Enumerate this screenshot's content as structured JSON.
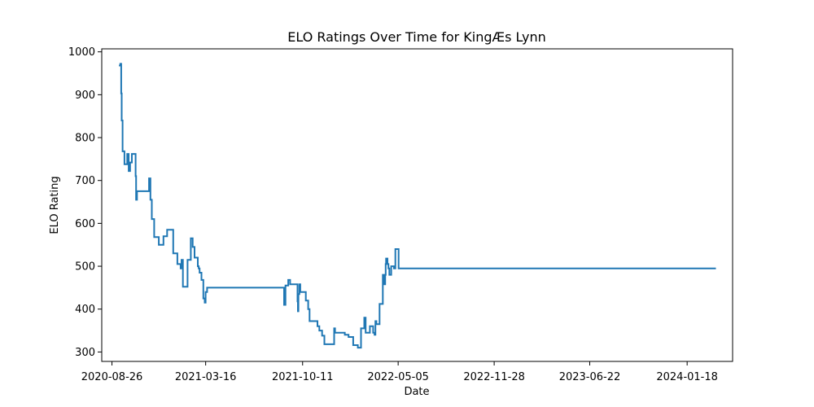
{
  "chart_data": {
    "type": "line",
    "title": "ELO Ratings Over Time for KingÆs Lynn",
    "xlabel": "Date",
    "ylabel": "ELO Rating",
    "x_tick_labels": [
      "2020-08-26",
      "2021-03-16",
      "2021-10-11",
      "2022-05-05",
      "2022-11-28",
      "2023-06-22",
      "2024-01-18"
    ],
    "y_ticks": [
      300,
      400,
      500,
      600,
      700,
      800,
      900,
      1000
    ],
    "ylim": [
      278,
      1007
    ],
    "xlim": [
      "2020-08-04",
      "2024-04-25"
    ],
    "grid": false,
    "line_color": "#1f77b4",
    "series": [
      {
        "x": [
          "2020-09-10",
          "2020-09-13",
          "2020-09-15",
          "2020-09-16",
          "2020-09-18",
          "2020-09-19",
          "2020-09-21",
          "2020-09-22",
          "2020-09-28",
          "2020-09-30",
          "2020-10-01",
          "2020-10-04",
          "2020-10-08",
          "2020-10-13",
          "2020-10-16",
          "2020-10-17",
          "2020-10-19",
          "2020-10-21",
          "2020-10-24",
          "2020-10-31",
          "2020-11-01",
          "2020-11-06",
          "2020-11-10",
          "2020-11-14",
          "2020-11-17",
          "2020-11-20",
          "2020-11-25",
          "2020-12-05",
          "2020-12-15",
          "2020-12-23",
          "2021-01-05",
          "2021-01-14",
          "2021-01-21",
          "2021-01-23",
          "2021-01-26",
          "2021-02-05",
          "2021-02-10",
          "2021-02-12",
          "2021-02-16",
          "2021-02-20",
          "2021-02-22",
          "2021-02-27",
          "2021-03-01",
          "2021-03-03",
          "2021-03-07",
          "2021-03-09",
          "2021-03-11",
          "2021-03-14",
          "2021-03-16",
          "2021-03-19",
          "2021-03-26",
          "2021-04-01",
          "2021-04-03",
          "2021-04-06",
          "2021-04-10",
          "2021-04-13",
          "2021-04-16",
          "2021-04-20",
          "2021-04-22",
          "2021-04-25",
          "2021-05-01",
          "2021-05-11",
          "2021-05-18",
          "2021-05-22",
          "2021-05-24",
          "2021-06-02",
          "2021-08-20",
          "2021-09-01",
          "2021-09-03",
          "2021-09-04",
          "2021-09-10",
          "2021-09-14",
          "2021-09-17",
          "2021-09-21",
          "2021-09-27",
          "2021-09-30",
          "2021-10-01",
          "2021-10-02",
          "2021-10-04",
          "2021-10-06",
          "2021-10-08",
          "2021-10-10",
          "2021-10-18",
          "2021-10-23",
          "2021-10-26",
          "2021-11-05",
          "2021-11-12",
          "2021-11-16",
          "2021-11-22",
          "2021-11-27",
          "2021-12-07",
          "2021-12-18",
          "2021-12-20",
          "2021-12-25",
          "2022-01-10",
          "2022-01-18",
          "2022-01-28",
          "2022-02-07",
          "2022-02-14",
          "2022-02-21",
          "2022-02-24",
          "2022-02-26",
          "2022-03-05",
          "2022-03-12",
          "2022-03-15",
          "2022-03-17",
          "2022-03-19",
          "2022-03-23",
          "2022-03-26",
          "2022-03-29",
          "2022-04-02",
          "2022-04-05",
          "2022-04-07",
          "2022-04-08",
          "2022-04-09",
          "2022-04-12",
          "2022-04-14",
          "2022-04-16",
          "2022-04-20",
          "2022-04-22",
          "2022-04-26",
          "2022-04-29",
          "2022-05-03",
          "2022-05-06",
          "2022-05-07",
          "2022-05-08",
          "2024-03-20"
        ],
        "y": [
          968,
          972,
          903,
          840,
          768,
          768,
          768,
          738,
          762,
          762,
          722,
          742,
          762,
          762,
          710,
          655,
          675,
          675,
          675,
          675,
          675,
          675,
          675,
          705,
          655,
          610,
          568,
          550,
          570,
          585,
          530,
          505,
          495,
          515,
          452,
          515,
          515,
          565,
          545,
          520,
          520,
          500,
          495,
          485,
          468,
          468,
          425,
          415,
          440,
          450,
          450,
          450,
          450,
          450,
          450,
          450,
          450,
          450,
          450,
          450,
          450,
          450,
          450,
          450,
          450,
          450,
          450,
          410,
          410,
          455,
          468,
          458,
          458,
          458,
          458,
          418,
          395,
          435,
          458,
          440,
          440,
          440,
          420,
          400,
          372,
          372,
          360,
          350,
          338,
          318,
          318,
          355,
          345,
          345,
          340,
          335,
          316,
          310,
          355,
          380,
          345,
          345,
          360,
          345,
          340,
          372,
          365,
          365,
          412,
          412,
          480,
          458,
          480,
          505,
          518,
          505,
          495,
          480,
          500,
          500,
          495,
          540,
          540,
          495,
          495,
          495,
          495
        ]
      }
    ]
  }
}
